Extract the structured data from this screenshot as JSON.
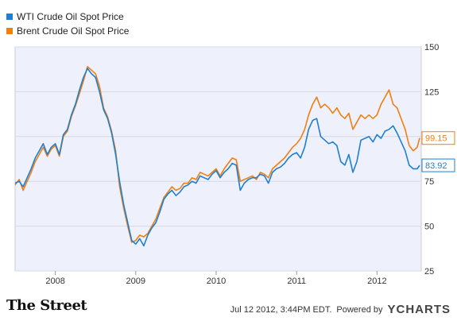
{
  "legend": {
    "items": [
      {
        "label": "WTI Crude Oil Spot Price",
        "color": "#1f7fd1"
      },
      {
        "label": "Brent Crude Oil Spot Price",
        "color": "#f07f12"
      }
    ]
  },
  "chart_data": {
    "type": "line",
    "title": "",
    "xlabel": "",
    "ylabel": "",
    "xlim": [
      2007.5,
      2012.55
    ],
    "ylim": [
      25,
      150
    ],
    "x_ticks": [
      {
        "label": "2008",
        "value": 2008
      },
      {
        "label": "2009",
        "value": 2009
      },
      {
        "label": "2010",
        "value": 2010
      },
      {
        "label": "2011",
        "value": 2011
      },
      {
        "label": "2012",
        "value": 2012
      }
    ],
    "y_ticks": [
      25,
      50,
      75,
      100,
      125,
      150
    ],
    "y_tick_labels": [
      "25",
      "50",
      "75",
      "",
      "125",
      "150"
    ],
    "grid": "horizontal",
    "background": "#eef1fb",
    "series": [
      {
        "name": "WTI Crude Oil Spot Price",
        "color": "#1f7fd1",
        "end_label": "83.92",
        "x": [
          2007.5,
          2007.55,
          2007.6,
          2007.65,
          2007.7,
          2007.75,
          2007.8,
          2007.85,
          2007.9,
          2007.95,
          2008.0,
          2008.05,
          2008.1,
          2008.15,
          2008.2,
          2008.25,
          2008.3,
          2008.35,
          2008.4,
          2008.45,
          2008.5,
          2008.55,
          2008.6,
          2008.65,
          2008.7,
          2008.75,
          2008.8,
          2008.85,
          2008.9,
          2008.95,
          2009.0,
          2009.05,
          2009.1,
          2009.15,
          2009.2,
          2009.25,
          2009.3,
          2009.35,
          2009.4,
          2009.45,
          2009.5,
          2009.55,
          2009.6,
          2009.65,
          2009.7,
          2009.75,
          2009.8,
          2009.85,
          2009.9,
          2009.95,
          2010.0,
          2010.05,
          2010.1,
          2010.15,
          2010.2,
          2010.25,
          2010.3,
          2010.35,
          2010.4,
          2010.45,
          2010.5,
          2010.55,
          2010.6,
          2010.65,
          2010.7,
          2010.75,
          2010.8,
          2010.85,
          2010.9,
          2010.95,
          2011.0,
          2011.05,
          2011.1,
          2011.15,
          2011.2,
          2011.25,
          2011.3,
          2011.35,
          2011.4,
          2011.45,
          2011.5,
          2011.55,
          2011.6,
          2011.65,
          2011.7,
          2011.75,
          2011.8,
          2011.85,
          2011.9,
          2011.95,
          2012.0,
          2012.05,
          2012.1,
          2012.15,
          2012.2,
          2012.25,
          2012.3,
          2012.35,
          2012.4,
          2012.45,
          2012.5,
          2012.53
        ],
        "values": [
          74,
          75,
          72,
          77,
          82,
          88,
          92,
          96,
          90,
          94,
          96,
          90,
          101,
          104,
          112,
          118,
          126,
          133,
          138,
          135,
          133,
          125,
          115,
          110,
          102,
          90,
          75,
          62,
          52,
          42,
          40,
          43,
          39,
          45,
          49,
          52,
          58,
          65,
          68,
          70,
          67,
          69,
          72,
          73,
          75,
          74,
          78,
          77,
          76,
          79,
          81,
          77,
          80,
          82,
          85,
          84,
          70,
          74,
          76,
          77,
          77,
          79,
          78,
          74,
          80,
          82,
          83,
          85,
          88,
          90,
          91,
          88,
          94,
          104,
          109,
          110,
          100,
          98,
          96,
          97,
          95,
          86,
          84,
          90,
          80,
          86,
          98,
          99,
          100,
          97,
          101,
          99,
          103,
          104,
          106,
          102,
          97,
          92,
          84,
          82,
          82,
          83.92
        ]
      },
      {
        "name": "Brent Crude Oil Spot Price",
        "color": "#f07f12",
        "end_label": "99.15",
        "x": [
          2007.5,
          2007.55,
          2007.6,
          2007.65,
          2007.7,
          2007.75,
          2007.8,
          2007.85,
          2007.9,
          2007.95,
          2008.0,
          2008.05,
          2008.1,
          2008.15,
          2008.2,
          2008.25,
          2008.3,
          2008.35,
          2008.4,
          2008.45,
          2008.5,
          2008.55,
          2008.6,
          2008.65,
          2008.7,
          2008.75,
          2008.8,
          2008.85,
          2008.9,
          2008.95,
          2009.0,
          2009.05,
          2009.1,
          2009.15,
          2009.2,
          2009.25,
          2009.3,
          2009.35,
          2009.4,
          2009.45,
          2009.5,
          2009.55,
          2009.6,
          2009.65,
          2009.7,
          2009.75,
          2009.8,
          2009.85,
          2009.9,
          2009.95,
          2010.0,
          2010.05,
          2010.1,
          2010.15,
          2010.2,
          2010.25,
          2010.3,
          2010.35,
          2010.4,
          2010.45,
          2010.5,
          2010.55,
          2010.6,
          2010.65,
          2010.7,
          2010.75,
          2010.8,
          2010.85,
          2010.9,
          2010.95,
          2011.0,
          2011.05,
          2011.1,
          2011.15,
          2011.2,
          2011.25,
          2011.3,
          2011.35,
          2011.4,
          2011.45,
          2011.5,
          2011.55,
          2011.6,
          2011.65,
          2011.7,
          2011.75,
          2011.8,
          2011.85,
          2011.9,
          2011.95,
          2012.0,
          2012.05,
          2012.1,
          2012.15,
          2012.2,
          2012.25,
          2012.3,
          2012.35,
          2012.4,
          2012.45,
          2012.5,
          2012.53
        ],
        "values": [
          73,
          76,
          70,
          75,
          80,
          86,
          90,
          94,
          89,
          93,
          95,
          89,
          100,
          103,
          111,
          117,
          124,
          131,
          139,
          137,
          135,
          128,
          116,
          111,
          103,
          92,
          72,
          60,
          50,
          41,
          42,
          45,
          44,
          46,
          50,
          54,
          60,
          66,
          69,
          72,
          70,
          71,
          74,
          74,
          77,
          76,
          80,
          79,
          78,
          80,
          82,
          78,
          82,
          85,
          88,
          87,
          75,
          76,
          77,
          78,
          76,
          80,
          79,
          77,
          82,
          84,
          86,
          88,
          91,
          94,
          96,
          99,
          104,
          112,
          118,
          122,
          116,
          118,
          116,
          113,
          116,
          112,
          110,
          113,
          104,
          108,
          112,
          110,
          112,
          110,
          112,
          118,
          122,
          126,
          118,
          116,
          110,
          104,
          95,
          92,
          94,
          99.15
        ]
      }
    ]
  },
  "footer": {
    "source": "The Street",
    "timestamp": "Jul 12 2012, 3:44PM EDT.",
    "powered_by": "Powered by",
    "brand": "YCHARTS"
  }
}
